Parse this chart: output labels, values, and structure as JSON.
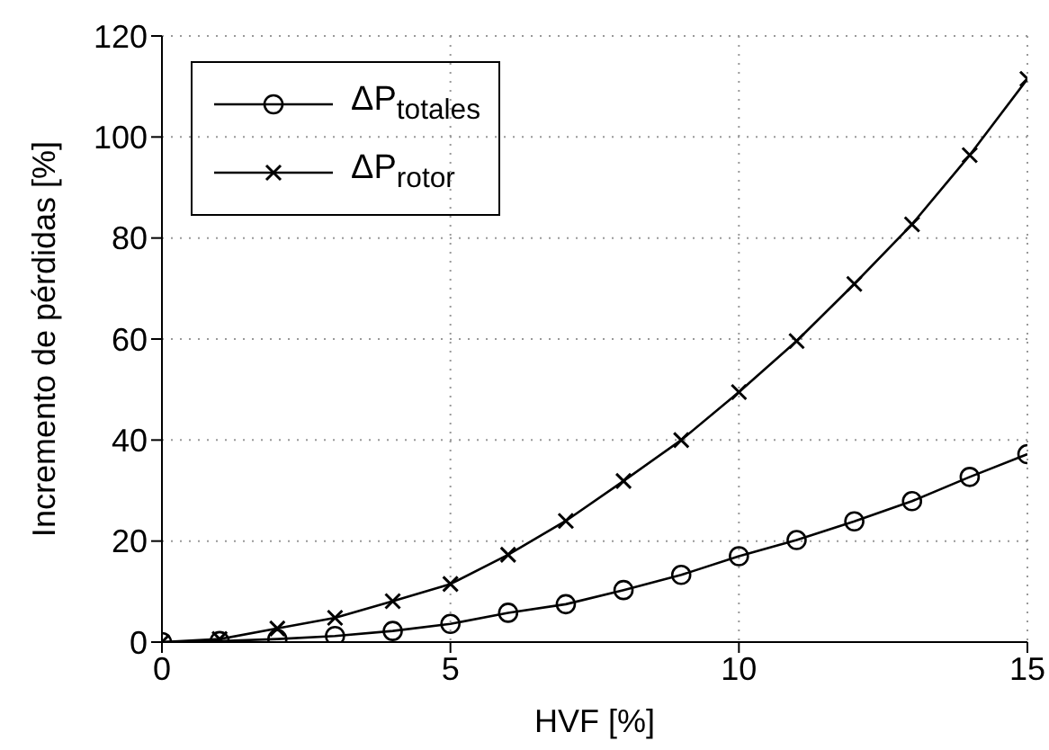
{
  "chart_data": {
    "type": "line",
    "xlabel": "HVF [%]",
    "ylabel": "Incremento de pérdidas [%]",
    "x": [
      0,
      1,
      2,
      3,
      4,
      5,
      6,
      7,
      8,
      9,
      10,
      11,
      12,
      13,
      14,
      15
    ],
    "series": [
      {
        "name": "ΔP$_{totales}$",
        "color": "#000000",
        "marker": "circle",
        "values": [
          0,
          0.2,
          0.6,
          1.2,
          2.2,
          3.6,
          5.8,
          7.5,
          10.3,
          13.3,
          17,
          20.2,
          23.9,
          27.9,
          32.7,
          37.2
        ]
      },
      {
        "name": "ΔP$_{rotor}$",
        "color": "#000000",
        "marker": "cross",
        "values": [
          0,
          0.6,
          2.7,
          4.8,
          8.1,
          11.5,
          17.3,
          24,
          31.9,
          40,
          49.5,
          59.6,
          70.9,
          82.7,
          96.4,
          111.5
        ]
      }
    ],
    "xlim": [
      0,
      15
    ],
    "xticks": [
      0,
      5,
      10,
      15
    ],
    "ylim": [
      0,
      120
    ],
    "yticks": [
      0,
      20,
      40,
      60,
      80,
      100,
      120
    ],
    "grid": true,
    "legend": "top left",
    "line_style": "solid"
  }
}
